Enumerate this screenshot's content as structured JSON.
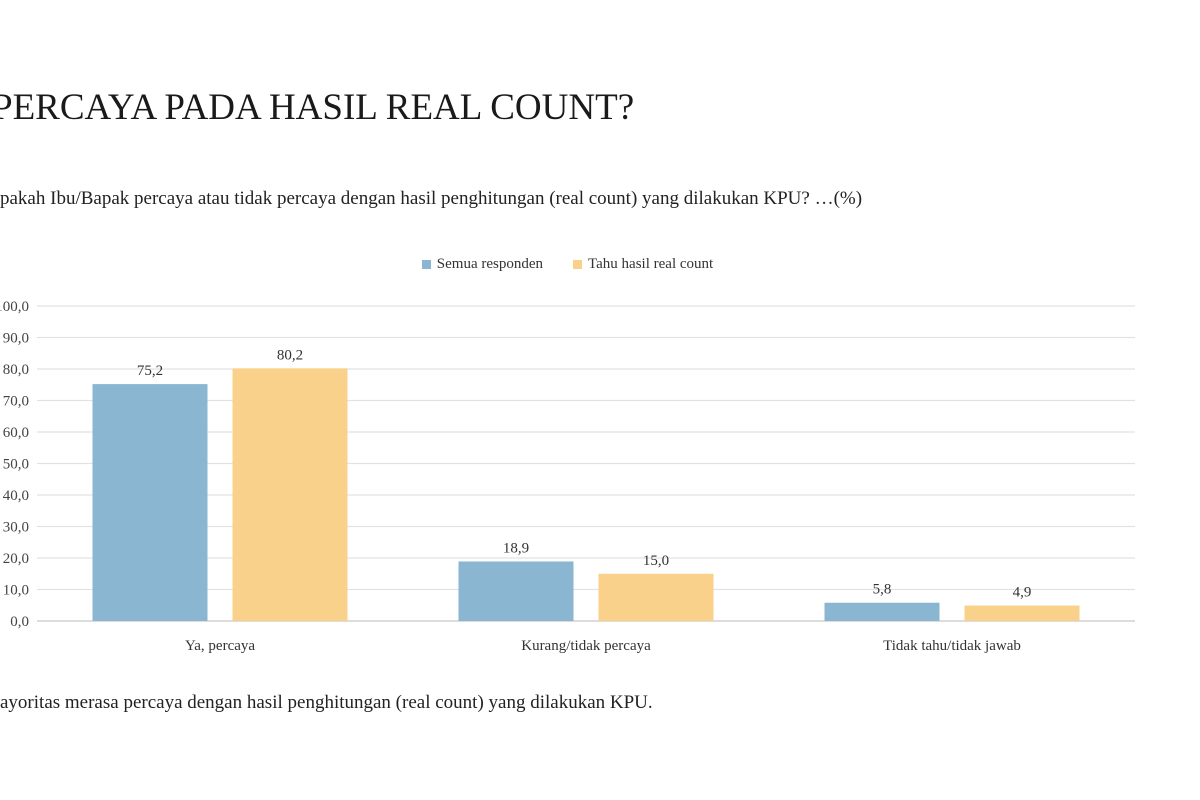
{
  "title": "PERCAYA PADA HASIL REAL COUNT?",
  "subtitle": "pakah Ibu/Bapak percaya atau tidak percaya dengan hasil penghitungan (real count) yang dilakukan KPU? …(%)",
  "footer": "ayoritas merasa percaya dengan hasil penghitungan (real count) yang dilakukan KPU.",
  "chart_data": {
    "type": "bar",
    "categories": [
      "Ya, percaya",
      "Kurang/tidak percaya",
      "Tidak tahu/tidak jawab"
    ],
    "series": [
      {
        "name": "Semua responden",
        "values": [
          75.2,
          18.9,
          5.8
        ],
        "color": "#8ab6d1"
      },
      {
        "name": "Tahu hasil real count",
        "values": [
          80.2,
          15.0,
          4.9
        ],
        "color": "#f9d18b"
      }
    ],
    "data_labels": [
      [
        "75,2",
        "18,9",
        "5,8"
      ],
      [
        "80,2",
        "15,0",
        "4,9"
      ]
    ],
    "ylim": [
      0,
      100
    ],
    "yticks": [
      "0,0",
      "10,0",
      "20,0",
      "30,0",
      "40,0",
      "50,0",
      "60,0",
      "70,0",
      "80,0",
      "90,0",
      "100,0"
    ],
    "grid": true,
    "legend_position": "top-center"
  }
}
